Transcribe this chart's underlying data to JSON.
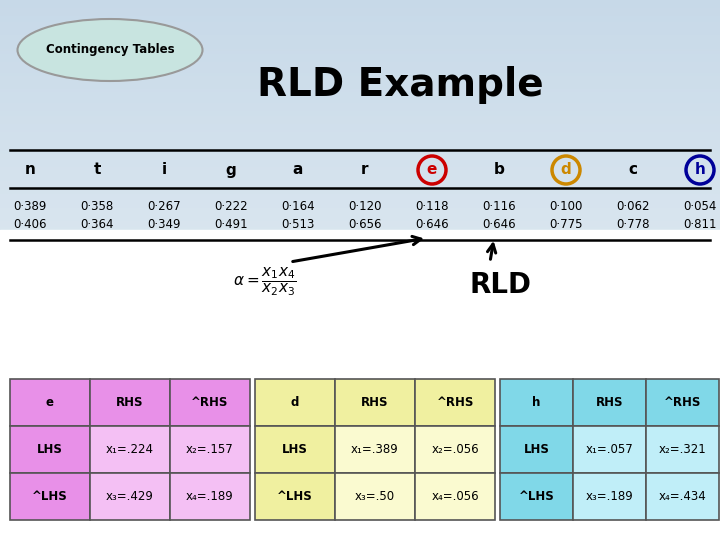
{
  "title": "RLD Example",
  "badge_text": "Contingency Tables",
  "header_row": [
    "n",
    "t",
    "i",
    "g",
    "a",
    "r",
    "e",
    "b",
    "d",
    "c",
    "h"
  ],
  "row1": [
    "0·389",
    "0·358",
    "0·267",
    "0·222",
    "0·164",
    "0·120",
    "0·118",
    "0·116",
    "0·100",
    "0·062",
    "0·054"
  ],
  "row2": [
    "0·406",
    "0·364",
    "0·349",
    "0·491",
    "0·513",
    "0·656",
    "0·646",
    "0·646",
    "0·775",
    "0·778",
    "0·811"
  ],
  "circle_colors": {
    "e": "#cc0000",
    "d": "#cc8800",
    "h": "#000099"
  },
  "table_e": {
    "header": [
      "e",
      "RHS",
      "^RHS"
    ],
    "row1": [
      "LHS",
      "x₁=.224",
      "x₂=.157"
    ],
    "row2": [
      "^LHS",
      "x₃=.429",
      "x₄=.189"
    ],
    "header_color": "#e890e8",
    "cell_color": "#f4c0f4"
  },
  "table_d": {
    "header": [
      "d",
      "RHS",
      "^RHS"
    ],
    "row1": [
      "LHS",
      "x₁=.389",
      "x₂=.056"
    ],
    "row2": [
      "^LHS",
      "x₃=.50",
      "x₄=.056"
    ],
    "header_color": "#f0f0a0",
    "cell_color": "#fafad0"
  },
  "table_h": {
    "header": [
      "h",
      "RHS",
      "^RHS"
    ],
    "row1": [
      "LHS",
      "x₁=.057",
      "x₂=.321"
    ],
    "row2": [
      "^LHS",
      "x₃=.189",
      "x₄=.434"
    ],
    "header_color": "#80d8e8",
    "cell_color": "#c0eef8"
  },
  "rld_label": "RLD"
}
